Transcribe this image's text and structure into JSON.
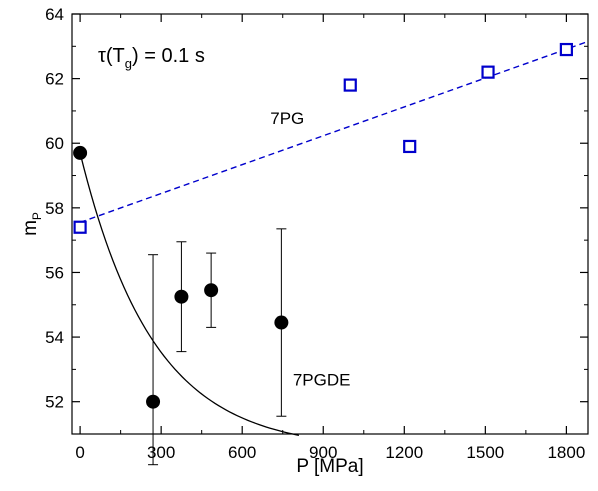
{
  "chart_data": {
    "type": "scatter",
    "xlabel": "P [MPa]",
    "ylabel": "m",
    "ylabel_subscript": "P",
    "xlim": [
      -30,
      1880
    ],
    "ylim": [
      51,
      64
    ],
    "xticks": [
      0,
      300,
      600,
      900,
      1200,
      1500,
      1800
    ],
    "xticks_minor": [
      150,
      450,
      750,
      1050,
      1350,
      1650
    ],
    "yticks": [
      52,
      54,
      56,
      58,
      60,
      62,
      64
    ],
    "yticks_minor": [
      51,
      53,
      55,
      57,
      59,
      61,
      63
    ],
    "grid": false,
    "annotation_tau": {
      "prefix": "τ(T",
      "sub": "g",
      "suffix": ") = 0.1 s"
    },
    "series": [
      {
        "name": "7PG",
        "marker": "open-square",
        "color": "#0000cc",
        "x": [
          0,
          1000,
          1220,
          1510,
          1800
        ],
        "y": [
          57.4,
          61.8,
          59.9,
          62.2,
          62.9
        ]
      },
      {
        "name": "7PGDE",
        "marker": "filled-circle",
        "color": "#000000",
        "x": [
          0,
          270,
          375,
          485,
          745
        ],
        "y": [
          59.7,
          52.0,
          55.25,
          55.45,
          54.45
        ],
        "error_low": [
          null,
          50.05,
          53.55,
          54.3,
          51.55
        ],
        "error_high": [
          null,
          56.55,
          56.95,
          56.6,
          57.35
        ]
      }
    ],
    "fit_lines": [
      {
        "for": "7PG",
        "style": "dashed",
        "color": "#0000cc",
        "x": [
          0,
          1880
        ],
        "y": [
          57.55,
          63.15
        ]
      },
      {
        "for": "7PGDE",
        "style": "solid",
        "color": "#000000",
        "model": "exponential",
        "x_range": [
          0,
          810
        ],
        "y0": 59.7,
        "y_inf": 50.5,
        "decay": 270
      }
    ],
    "series_labels": [
      {
        "text": "7PG",
        "x": 1000,
        "y": 60.6
      },
      {
        "text": "7PGDE",
        "x": 780,
        "y": 52.5
      }
    ]
  }
}
